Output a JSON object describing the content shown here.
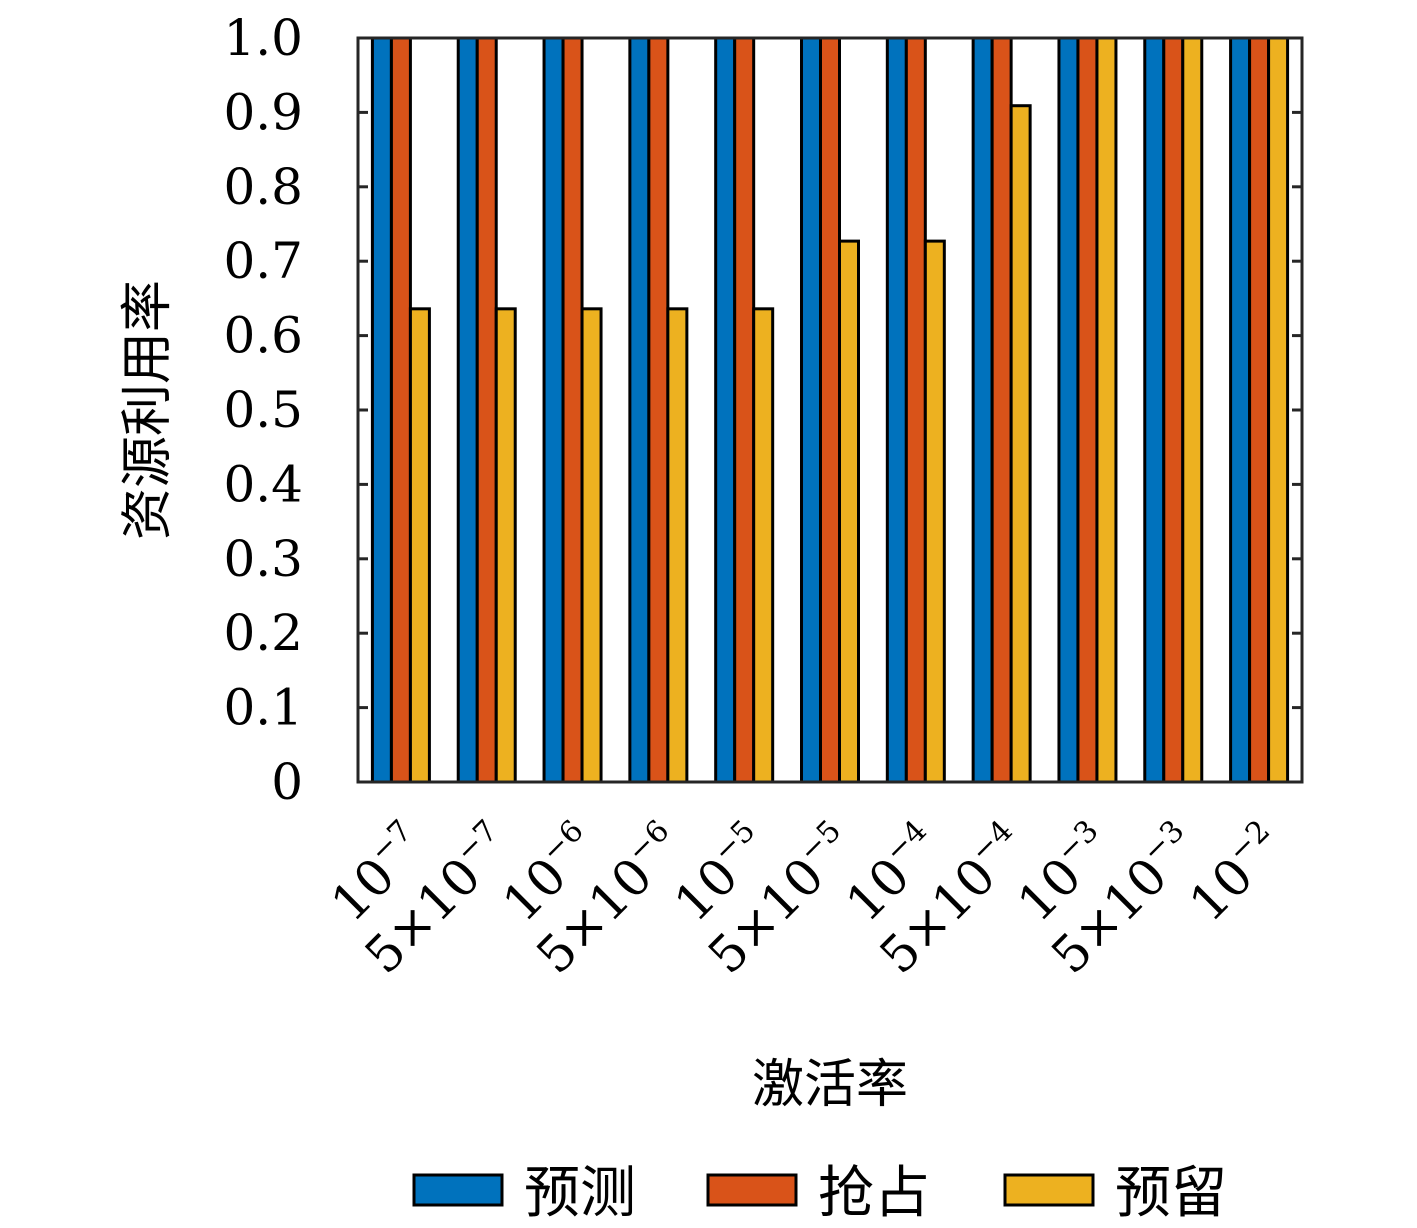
{
  "chart_data": {
    "type": "bar",
    "xlabel": "激活率",
    "ylabel": "资源利用率",
    "ylim": [
      0,
      1.0
    ],
    "yticks": [
      "0",
      "0.1",
      "0.2",
      "0.3",
      "0.4",
      "0.5",
      "0.6",
      "0.7",
      "0.8",
      "0.9",
      "1.0"
    ],
    "categories": [
      {
        "base": "10",
        "sup": "−7"
      },
      {
        "base": "5×10",
        "sup": "−7"
      },
      {
        "base": "10",
        "sup": "−6"
      },
      {
        "base": "5×10",
        "sup": "−6"
      },
      {
        "base": "10",
        "sup": "−5"
      },
      {
        "base": "5×10",
        "sup": "−5"
      },
      {
        "base": "10",
        "sup": "−4"
      },
      {
        "base": "5×10",
        "sup": "−4"
      },
      {
        "base": "10",
        "sup": "−3"
      },
      {
        "base": "5×10",
        "sup": "−3"
      },
      {
        "base": "10",
        "sup": "−2"
      }
    ],
    "series": [
      {
        "name": "预测",
        "color": "#0072BD",
        "values": [
          1,
          1,
          1,
          1,
          1,
          1,
          1,
          1,
          1,
          1,
          1
        ]
      },
      {
        "name": "抢占",
        "color": "#D95319",
        "values": [
          1,
          1,
          1,
          1,
          1,
          1,
          1,
          1,
          1,
          1,
          1
        ]
      },
      {
        "name": "预留",
        "color": "#EDB120",
        "values": [
          0.636,
          0.636,
          0.636,
          0.636,
          0.636,
          0.727,
          0.727,
          0.909,
          1,
          1,
          1
        ]
      }
    ],
    "legend_position": "bottom",
    "grid": false
  }
}
